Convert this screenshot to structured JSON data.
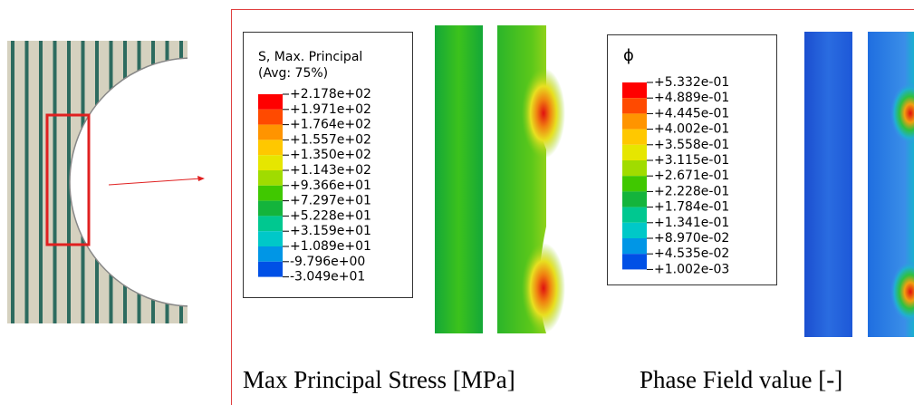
{
  "stress_legend": {
    "title": "S, Max. Principal",
    "subtitle": "(Avg: 75%)",
    "labels": [
      "+2.178e+02",
      "+1.971e+02",
      "+1.764e+02",
      "+1.557e+02",
      "+1.350e+02",
      "+1.143e+02",
      "+9.366e+01",
      "+7.297e+01",
      "+5.228e+01",
      "+3.159e+01",
      "+1.089e+01",
      "-9.796e+00",
      "-3.049e+01"
    ]
  },
  "phase_legend": {
    "title": "ϕ",
    "labels": [
      "+5.332e-01",
      "+4.889e-01",
      "+4.445e-01",
      "+4.002e-01",
      "+3.558e-01",
      "+3.115e-01",
      "+2.671e-01",
      "+2.228e-01",
      "+1.784e-01",
      "+1.341e-01",
      "+8.970e-02",
      "+4.535e-02",
      "+1.002e-03"
    ]
  },
  "captions": [
    "Max Principal Stress [MPa]",
    "Phase Field value [-]"
  ]
}
